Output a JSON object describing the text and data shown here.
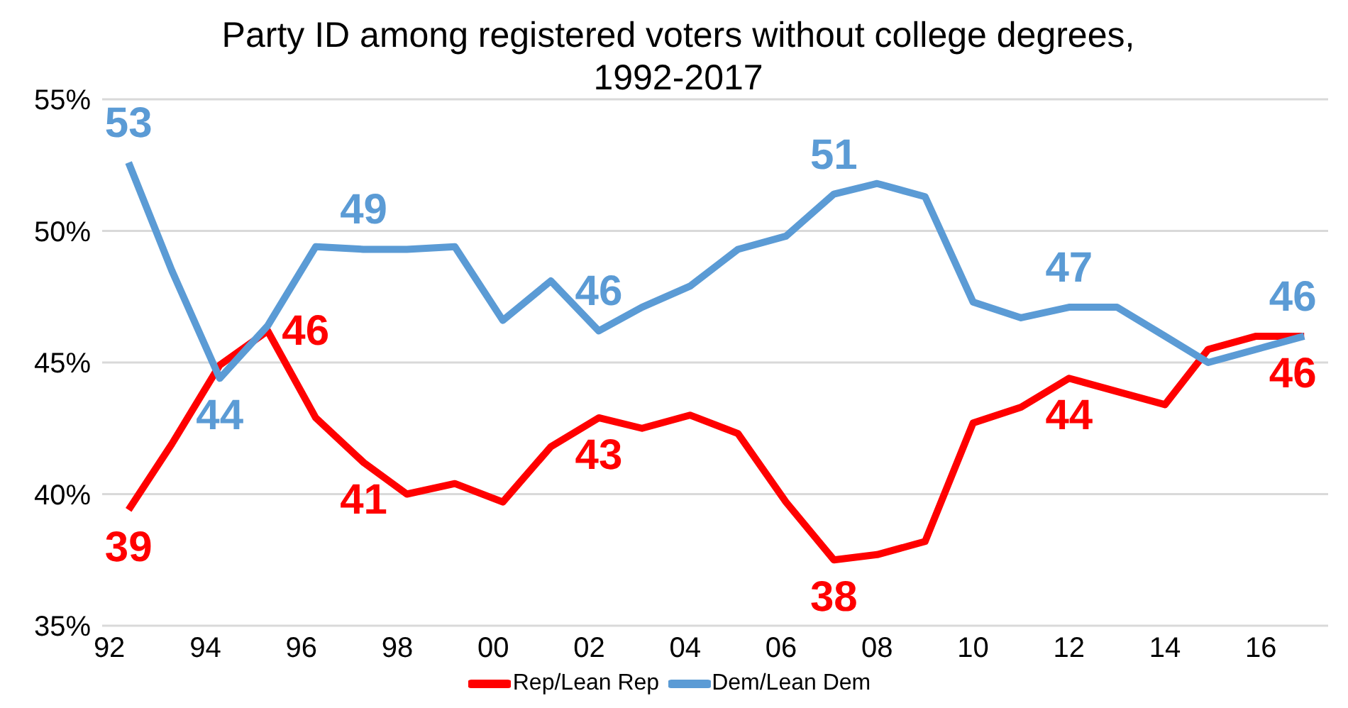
{
  "chart_data": {
    "type": "line",
    "title": "Party ID among registered voters without college degrees, 1992-2017",
    "x": [
      1992.4,
      1993.3,
      1994.3,
      1995.3,
      1996.3,
      1997.3,
      1998.2,
      1999.2,
      2000.2,
      2001.2,
      2002.2,
      2003.1,
      2004.1,
      2005.1,
      2006.1,
      2007.1,
      2008.0,
      2009.0,
      2010.0,
      2011.0,
      2012.0,
      2013.0,
      2014.0,
      2014.9,
      2015.9,
      2016.9
    ],
    "series": [
      {
        "name": "Rep/Lean Rep",
        "color": "#ff0000",
        "values": [
          39.4,
          41.9,
          44.9,
          46.2,
          42.9,
          41.2,
          40.0,
          40.4,
          39.7,
          41.8,
          42.9,
          42.5,
          43.0,
          42.3,
          39.7,
          37.5,
          37.7,
          38.2,
          42.7,
          43.3,
          44.4,
          43.9,
          43.4,
          45.5,
          46.0,
          46.0
        ],
        "value_labels": [
          "39",
          null,
          null,
          "46",
          null,
          "41",
          null,
          null,
          null,
          null,
          "43",
          null,
          null,
          null,
          null,
          "38",
          null,
          null,
          null,
          null,
          "44",
          null,
          null,
          null,
          null,
          "46"
        ]
      },
      {
        "name": "Dem/Lean Dem",
        "color": "#5b9bd5",
        "values": [
          52.6,
          48.5,
          44.4,
          46.4,
          49.4,
          49.3,
          49.3,
          49.4,
          46.6,
          48.1,
          46.2,
          47.1,
          47.9,
          49.3,
          49.8,
          51.4,
          51.8,
          51.3,
          47.3,
          46.7,
          47.1,
          47.1,
          46.0,
          45.0,
          45.5,
          46.0
        ],
        "value_labels": [
          "53",
          null,
          "44",
          null,
          null,
          "49",
          null,
          null,
          null,
          null,
          "46",
          null,
          null,
          null,
          null,
          "51",
          null,
          null,
          null,
          null,
          "47",
          null,
          null,
          null,
          null,
          "46"
        ]
      }
    ],
    "xlim": [
      1991.85,
      2017.4
    ],
    "xticks": [
      {
        "value": 1992,
        "label": "92"
      },
      {
        "value": 1994,
        "label": "94"
      },
      {
        "value": 1996,
        "label": "96"
      },
      {
        "value": 1998,
        "label": "98"
      },
      {
        "value": 2000,
        "label": "00"
      },
      {
        "value": 2002,
        "label": "02"
      },
      {
        "value": 2004,
        "label": "04"
      },
      {
        "value": 2006,
        "label": "06"
      },
      {
        "value": 2008,
        "label": "08"
      },
      {
        "value": 2010,
        "label": "10"
      },
      {
        "value": 2012,
        "label": "12"
      },
      {
        "value": 2014,
        "label": "14"
      },
      {
        "value": 2016,
        "label": "16"
      }
    ],
    "ylim": [
      35,
      55
    ],
    "yticks": [
      {
        "value": 35,
        "label": "35%"
      },
      {
        "value": 40,
        "label": "40%"
      },
      {
        "value": 45,
        "label": "45%"
      },
      {
        "value": 50,
        "label": "50%"
      },
      {
        "value": 55,
        "label": "55%"
      }
    ],
    "grid": "y",
    "legend": "bottom",
    "marker": "none",
    "line_style": "solid"
  }
}
